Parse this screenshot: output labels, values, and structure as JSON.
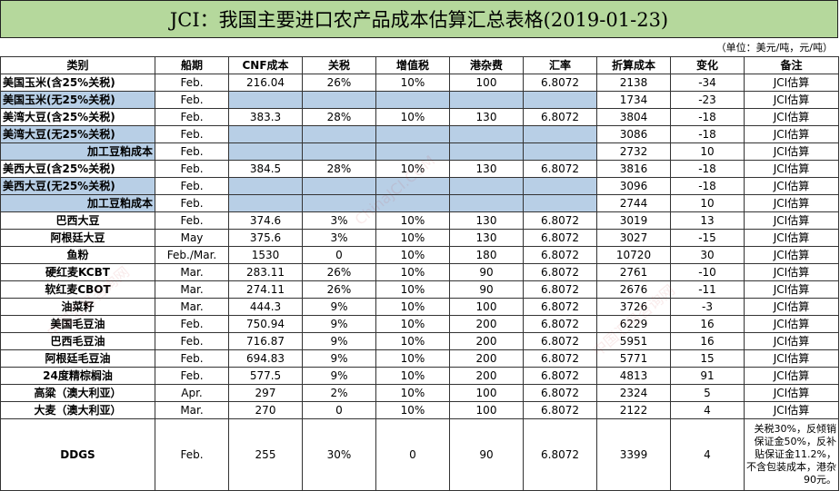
{
  "title": "JCI：我国主要进口农产品成本估算汇总表格(2019-01-23)",
  "unit": "（单位：美元/吨，元/吨）",
  "headers": [
    "类别",
    "船期",
    "CNF成本",
    "关税",
    "增值税",
    "港杂费",
    "汇率",
    "折算成本",
    "变化",
    "备注"
  ],
  "rows": [
    {
      "cells": [
        "美国玉米(含25%关税)",
        "Feb.",
        "216.04",
        "26%",
        "10%",
        "100",
        "6.8072",
        "2138",
        "-34",
        "JCI估算"
      ],
      "style": "normal",
      "align": "left"
    },
    {
      "cells": [
        "美国玉米(无25%关税)",
        "Feb.",
        "",
        "",
        "",
        "",
        "",
        "1734",
        "-23",
        "JCI估算"
      ],
      "style": "blue",
      "align": "left"
    },
    {
      "cells": [
        "美湾大豆(含25%关税)",
        "Feb.",
        "383.3",
        "28%",
        "10%",
        "130",
        "6.8072",
        "3804",
        "-18",
        "JCI估算"
      ],
      "style": "normal",
      "align": "left"
    },
    {
      "cells": [
        "美湾大豆(无25%关税)",
        "Feb.",
        "",
        "",
        "",
        "",
        "",
        "3086",
        "-18",
        "JCI估算"
      ],
      "style": "blue",
      "align": "left"
    },
    {
      "cells": [
        "加工豆粕成本",
        "Feb.",
        "",
        "",
        "",
        "",
        "",
        "2732",
        "10",
        "JCI估算"
      ],
      "style": "blue",
      "align": "right"
    },
    {
      "cells": [
        "美西大豆(含25%关税)",
        "Feb.",
        "384.5",
        "28%",
        "10%",
        "130",
        "6.8072",
        "3816",
        "-18",
        "JCI估算"
      ],
      "style": "normal",
      "align": "left"
    },
    {
      "cells": [
        "美西大豆(无25%关税)",
        "Feb.",
        "",
        "",
        "",
        "",
        "",
        "3096",
        "-18",
        "JCI估算"
      ],
      "style": "blue",
      "align": "left"
    },
    {
      "cells": [
        "加工豆粕成本",
        "Feb.",
        "",
        "",
        "",
        "",
        "",
        "2744",
        "10",
        "JCI估算"
      ],
      "style": "blue",
      "align": "right"
    },
    {
      "cells": [
        "巴西大豆",
        "Feb.",
        "374.6",
        "3%",
        "10%",
        "130",
        "6.8072",
        "3019",
        "13",
        "JCI估算"
      ],
      "style": "normal",
      "align": "center"
    },
    {
      "cells": [
        "阿根廷大豆",
        "May",
        "375.6",
        "3%",
        "10%",
        "130",
        "6.8072",
        "3027",
        "-15",
        "JCI估算"
      ],
      "style": "normal",
      "align": "center"
    },
    {
      "cells": [
        "鱼粉",
        "Feb./Mar.",
        "1530",
        "0",
        "10%",
        "180",
        "6.8072",
        "10720",
        "30",
        "JCI估算"
      ],
      "style": "normal",
      "align": "center"
    },
    {
      "cells": [
        "硬红麦KCBT",
        "Mar.",
        "283.11",
        "26%",
        "10%",
        "90",
        "6.8072",
        "2761",
        "-10",
        "JCI估算"
      ],
      "style": "normal",
      "align": "center"
    },
    {
      "cells": [
        "软红麦CBOT",
        "Mar.",
        "274.11",
        "26%",
        "10%",
        "90",
        "6.8072",
        "2676",
        "-11",
        "JCI估算"
      ],
      "style": "normal",
      "align": "center"
    },
    {
      "cells": [
        "油菜籽",
        "Mar.",
        "444.3",
        "9%",
        "10%",
        "100",
        "6.8072",
        "3726",
        "-3",
        "JCI估算"
      ],
      "style": "normal",
      "align": "center"
    },
    {
      "cells": [
        "美国毛豆油",
        "Feb.",
        "750.94",
        "9%",
        "10%",
        "200",
        "6.8072",
        "6229",
        "16",
        "JCI估算"
      ],
      "style": "normal",
      "align": "center"
    },
    {
      "cells": [
        "巴西毛豆油",
        "Feb.",
        "716.87",
        "9%",
        "10%",
        "200",
        "6.8072",
        "5951",
        "16",
        "JCI估算"
      ],
      "style": "normal",
      "align": "center"
    },
    {
      "cells": [
        "阿根廷毛豆油",
        "Feb.",
        "694.83",
        "9%",
        "10%",
        "200",
        "6.8072",
        "5771",
        "15",
        "JCI估算"
      ],
      "style": "normal",
      "align": "center"
    },
    {
      "cells": [
        "24度精棕榈油",
        "Feb.",
        "577.5",
        "9%",
        "10%",
        "200",
        "6.8072",
        "4813",
        "91",
        "JCI估算"
      ],
      "style": "normal",
      "align": "center"
    },
    {
      "cells": [
        "高粱（澳大利亚）",
        "Apr.",
        "297",
        "2%",
        "10%",
        "100",
        "6.8072",
        "2324",
        "5",
        "JCI估算"
      ],
      "style": "normal",
      "align": "center"
    },
    {
      "cells": [
        "大麦（澳大利亚）",
        "Mar.",
        "270",
        "0",
        "10%",
        "100",
        "6.8072",
        "2122",
        "4",
        "JCI估算"
      ],
      "style": "normal",
      "align": "center"
    }
  ],
  "ddgs": {
    "cells": [
      "DDGS",
      "Feb.",
      "255",
      "30%",
      "0",
      "90",
      "6.8072",
      "3399",
      "4"
    ],
    "note": "关税30%，反倾销保证金50%，反补贴保证金11.2%，不含包装成本，港杂90元。"
  }
}
